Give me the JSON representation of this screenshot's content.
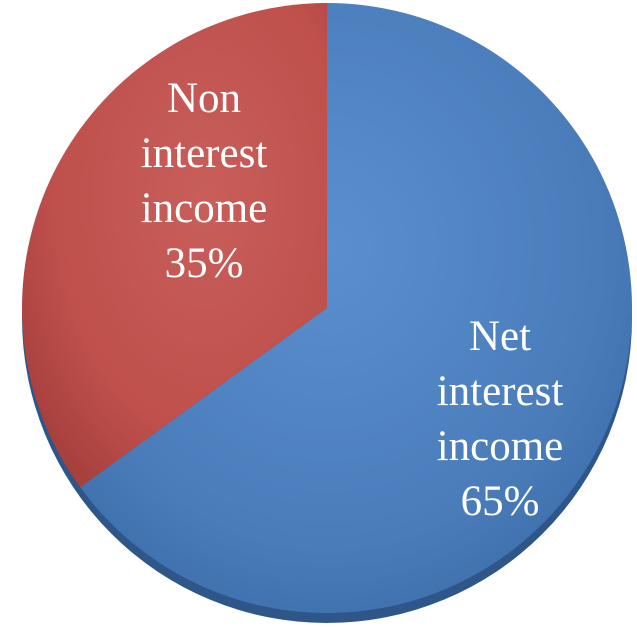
{
  "chart_data": {
    "type": "pie",
    "title": "",
    "categories": [
      "Net interest income",
      "Non interest income"
    ],
    "values": [
      65,
      35
    ],
    "unit": "%",
    "start_angle_deg": 0,
    "direction": "clockwise",
    "colors": [
      "#4F81BD",
      "#C0504D"
    ],
    "labels": [
      {
        "lines": [
          "Net",
          "interest",
          "income",
          "65%"
        ]
      },
      {
        "lines": [
          "Non",
          "interest",
          "income",
          "35%"
        ]
      }
    ],
    "legend": "none",
    "style": "3d-shaded"
  }
}
